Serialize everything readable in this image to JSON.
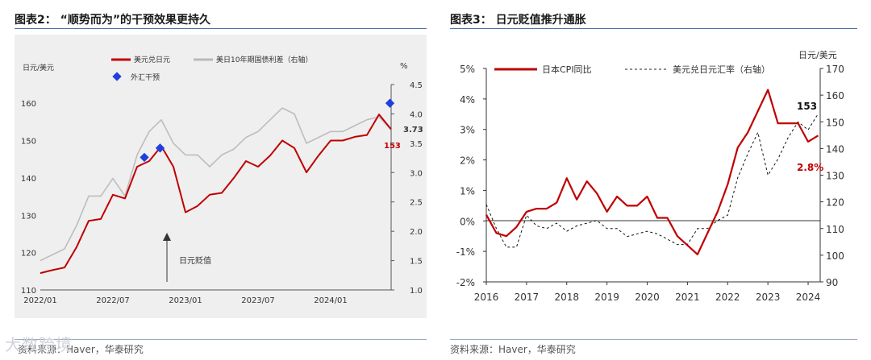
{
  "chart_data": [
    {
      "type": "line",
      "title": "图表2： “顺势而为”的干预效果更持久",
      "ylabel_left": "日元/美元",
      "ylabel_right": "%",
      "yticks_left": [
        "110",
        "120",
        "130",
        "140",
        "150",
        "160"
      ],
      "yticks_right": [
        "1.0",
        "1.5",
        "2.0",
        "2.5",
        "3.0",
        "3.5",
        "4.0",
        "4.5"
      ],
      "xticks": [
        "2022/01",
        "2022/07",
        "2023/01",
        "2023/07",
        "2024/01"
      ],
      "ylim_left": [
        110,
        165
      ],
      "ylim_right": [
        1.0,
        4.5
      ],
      "legend": {
        "s1": "美元兑日元",
        "s2": "美日10年期国债利差（右轴）",
        "s3": "外汇干预"
      },
      "end_labels": {
        "left": "153",
        "right": "3.73"
      },
      "annotation": "日元贬值",
      "x": [
        0,
        1,
        2,
        3,
        4,
        5,
        6,
        7,
        8,
        9,
        10,
        11,
        12,
        13,
        14,
        15,
        16,
        17,
        18,
        19,
        20,
        21,
        22,
        23,
        24,
        25,
        26,
        27,
        28,
        29
      ],
      "series": [
        {
          "name": "美元兑日元",
          "values": [
            114.5,
            115.3,
            116,
            121.5,
            128.5,
            129,
            135.5,
            134.5,
            143,
            144.5,
            148.5,
            143,
            130.8,
            132.5,
            135.5,
            136,
            140,
            144.5,
            143,
            146,
            150,
            148,
            141.5,
            146,
            150,
            150,
            151,
            151.5,
            157,
            153
          ]
        },
        {
          "name": "美日10年期国债利差（右轴）",
          "values": [
            1.5,
            1.6,
            1.7,
            2.1,
            2.6,
            2.6,
            2.9,
            2.6,
            3.3,
            3.7,
            3.9,
            3.5,
            3.3,
            3.3,
            3.1,
            3.3,
            3.4,
            3.6,
            3.7,
            3.9,
            4.1,
            4.0,
            3.5,
            3.6,
            3.7,
            3.7,
            3.8,
            3.9,
            3.95,
            3.73
          ]
        }
      ],
      "interventions": [
        {
          "x": 8.6,
          "y": 145.5
        },
        {
          "x": 9.9,
          "y": 148
        },
        {
          "x": 28.9,
          "y": 160
        }
      ]
    },
    {
      "type": "line",
      "title": "图表3： 日元贬值推升通胀",
      "ylabel_right": "日元/美元",
      "yticks_left": [
        "-2%",
        "-1%",
        "0%",
        "1%",
        "2%",
        "3%",
        "4%",
        "5%"
      ],
      "yticks_right": [
        "90",
        "100",
        "110",
        "120",
        "130",
        "140",
        "150",
        "160",
        "170"
      ],
      "xticks": [
        "2016",
        "2017",
        "2018",
        "2019",
        "2020",
        "2021",
        "2022",
        "2023",
        "2024"
      ],
      "ylim_left": [
        -2,
        5
      ],
      "ylim_right": [
        90,
        170
      ],
      "legend": {
        "s1": "日本CPI同比",
        "s2": "美元兑日元汇率（右轴）"
      },
      "end_labels": {
        "left": "2.8%",
        "right": "153"
      },
      "x": [
        2016,
        2016.25,
        2016.5,
        2016.75,
        2017,
        2017.25,
        2017.5,
        2017.75,
        2018,
        2018.25,
        2018.5,
        2018.75,
        2019,
        2019.25,
        2019.5,
        2019.75,
        2020,
        2020.25,
        2020.5,
        2020.75,
        2021,
        2021.25,
        2021.5,
        2021.75,
        2022,
        2022.25,
        2022.5,
        2022.75,
        2023,
        2023.25,
        2023.5,
        2023.75,
        2024,
        2024.25
      ],
      "series": [
        {
          "name": "日本CPI同比",
          "values": [
            0.2,
            -0.4,
            -0.5,
            -0.2,
            0.3,
            0.4,
            0.4,
            0.6,
            1.4,
            0.7,
            1.3,
            0.9,
            0.3,
            0.8,
            0.5,
            0.5,
            0.8,
            0.1,
            0.1,
            -0.5,
            -0.8,
            -1.1,
            -0.4,
            0.3,
            1.2,
            2.4,
            2.9,
            3.6,
            4.3,
            3.2,
            3.2,
            3.2,
            2.6,
            2.8
          ]
        },
        {
          "name": "美元兑日元汇率（右轴）",
          "values": [
            119,
            110,
            103,
            103,
            115,
            111,
            110,
            112,
            109,
            111,
            112,
            113,
            110,
            110,
            107,
            108,
            109,
            108,
            106,
            104,
            104,
            110,
            110,
            113,
            115,
            129,
            138,
            146,
            130,
            136,
            144,
            150,
            147,
            153
          ]
        }
      ]
    }
  ],
  "watermark": "大数跨境",
  "source_left": "资料来源：Haver，华泰研究",
  "source_right": "资料来源：Haver，华泰研究"
}
